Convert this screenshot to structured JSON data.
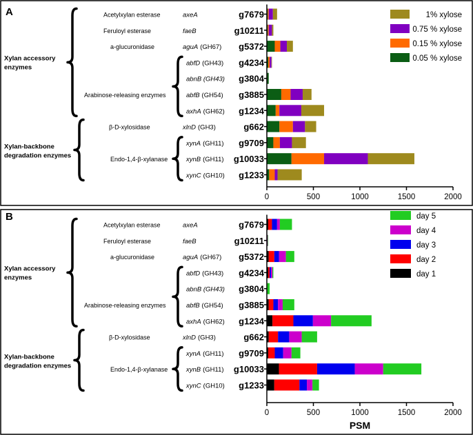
{
  "chart_data": [
    {
      "type": "bar",
      "orientation": "horizontal",
      "stacked": true,
      "panel_label": "A",
      "xlim": [
        0,
        2000
      ],
      "xticks": [
        "0",
        "500",
        "1000",
        "1500",
        "2000"
      ],
      "xlabel": "",
      "legend_position": "top-right",
      "categories": [
        "g7679",
        "g10211",
        "g5372",
        "g4234",
        "g3804",
        "g3885",
        "g1234",
        "g662",
        "g9709",
        "g10033",
        "g1233"
      ],
      "series": [
        {
          "name": "0.05 % xylose",
          "color": "#0b5d14",
          "values": [
            10,
            10,
            85,
            15,
            20,
            155,
            95,
            135,
            70,
            265,
            25
          ]
        },
        {
          "name": "0.15 % xylose",
          "color": "#ff6a00",
          "values": [
            10,
            10,
            60,
            15,
            0,
            100,
            40,
            145,
            70,
            350,
            60
          ]
        },
        {
          "name": "0.75 % xylose",
          "color": "#8000c0",
          "values": [
            45,
            35,
            70,
            20,
            0,
            130,
            235,
            130,
            130,
            470,
            30
          ]
        },
        {
          "name": "1% xylose",
          "color": "#9e8a1e",
          "values": [
            45,
            15,
            65,
            5,
            0,
            95,
            245,
            120,
            150,
            500,
            260
          ]
        }
      ]
    },
    {
      "type": "bar",
      "orientation": "horizontal",
      "stacked": true,
      "panel_label": "B",
      "xlim": [
        0,
        2000
      ],
      "xticks": [
        "0",
        "500",
        "1000",
        "1500",
        "2000"
      ],
      "xlabel": "PSM",
      "legend_position": "top-right",
      "categories": [
        "g7679",
        "g10211",
        "g5372",
        "g4234",
        "g3804",
        "g3885",
        "g1234",
        "g662",
        "g9709",
        "g10033",
        "g1233"
      ],
      "series": [
        {
          "name": "day 1",
          "color": "#000000",
          "values": [
            15,
            0,
            20,
            15,
            0,
            20,
            60,
            20,
            15,
            130,
            80
          ]
        },
        {
          "name": "day 2",
          "color": "#ff0000",
          "values": [
            40,
            0,
            60,
            15,
            0,
            50,
            225,
            100,
            70,
            410,
            270
          ]
        },
        {
          "name": "day 3",
          "color": "#0000ee",
          "values": [
            55,
            0,
            50,
            15,
            0,
            50,
            210,
            120,
            90,
            405,
            80
          ]
        },
        {
          "name": "day 4",
          "color": "#cc00cc",
          "values": [
            30,
            10,
            75,
            15,
            0,
            50,
            195,
            135,
            90,
            305,
            60
          ]
        },
        {
          "name": "day 5",
          "color": "#22cc22",
          "values": [
            130,
            5,
            90,
            10,
            30,
            125,
            435,
            165,
            95,
            410,
            70
          ]
        }
      ]
    }
  ],
  "rows": [
    {
      "enzyme": "Acetylxylan esterase",
      "gene": "axeA",
      "gh": "",
      "id": "g7679"
    },
    {
      "enzyme": "Feruloyl esterase",
      "gene": "faeB",
      "gh": "",
      "id": "g10211"
    },
    {
      "enzyme": "a-glucuronidase",
      "gene": "aguA",
      "gh": "(GH67)",
      "id": "g5372"
    },
    {
      "enzyme": "",
      "gene": "abfD",
      "gh": "(GH43)",
      "id": "g4234"
    },
    {
      "enzyme": "",
      "gene": "abnB (GH43)",
      "gh": "",
      "id": "g3804"
    },
    {
      "enzyme": "Arabinose-releasing enzymes",
      "gene": "abfB",
      "gh": "(GH54)",
      "id": "g3885"
    },
    {
      "enzyme": "",
      "gene": "axhA",
      "gh": "(GH62)",
      "id": "g1234"
    },
    {
      "enzyme": "β-D-xylosidase",
      "gene": "xlnD",
      "gh": "(GH3)",
      "id": "g662"
    },
    {
      "enzyme": "",
      "gene": "xynA",
      "gh": "(GH11)",
      "id": "g9709"
    },
    {
      "enzyme": "Endo-1,4-β-xylanase",
      "gene": "xynB",
      "gh": "(GH11)",
      "id": "g10033"
    },
    {
      "enzyme": "",
      "gene": "xynC",
      "gh": "(GH10)",
      "id": "g1233"
    }
  ],
  "groups": {
    "xylan_accessory": [
      "Xylan accessory",
      "enzymes"
    ],
    "xylan_backbone": [
      "Xylan-backbone",
      "degradation enzymes"
    ]
  }
}
